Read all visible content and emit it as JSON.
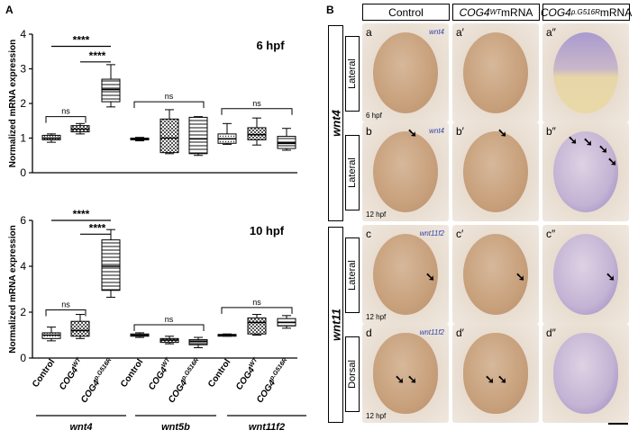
{
  "panel_labels": {
    "A": "A",
    "B": "B"
  },
  "chart_data": [
    {
      "type": "box",
      "title": "6 hpf",
      "ylabel": "Normalized mRNA expression",
      "ylim": [
        0,
        4
      ],
      "yticks": [
        0,
        1,
        2,
        3,
        4
      ],
      "categories": [
        "Control",
        "COG4WT",
        "COG4p.G516R",
        "Control",
        "COG4WT",
        "COG4p.G516R",
        "Control",
        "COG4WT",
        "COG4p.G516R"
      ],
      "patterns": [
        "dots",
        "checker",
        "hlines",
        "dots",
        "checker",
        "hlines",
        "dots",
        "checker",
        "hlines"
      ],
      "boxes": [
        {
          "min": 0.88,
          "q1": 0.95,
          "median": 1.0,
          "q3": 1.08,
          "max": 1.12
        },
        {
          "min": 1.12,
          "q1": 1.18,
          "median": 1.26,
          "q3": 1.36,
          "max": 1.42
        },
        {
          "min": 1.9,
          "q1": 2.05,
          "median": 2.4,
          "q3": 2.7,
          "max": 3.12
        },
        {
          "min": 0.92,
          "q1": 0.95,
          "median": 0.98,
          "q3": 1.0,
          "max": 1.02
        },
        {
          "min": 0.55,
          "q1": 0.58,
          "median": 1.0,
          "q3": 1.55,
          "max": 1.82
        },
        {
          "min": 0.5,
          "q1": 0.55,
          "median": 0.98,
          "q3": 1.6,
          "max": 1.62
        },
        {
          "min": 0.82,
          "q1": 0.85,
          "median": 0.98,
          "q3": 1.12,
          "max": 1.42
        },
        {
          "min": 0.8,
          "q1": 0.95,
          "median": 1.1,
          "q3": 1.3,
          "max": 1.58
        },
        {
          "min": 0.65,
          "q1": 0.7,
          "median": 0.85,
          "q3": 1.05,
          "max": 1.28
        }
      ],
      "significance": [
        {
          "from": 0,
          "to": 2,
          "label": "****"
        },
        {
          "from": 1,
          "to": 2,
          "label": "****"
        },
        {
          "from": 0,
          "to": 1,
          "label": "ns"
        },
        {
          "from": 3,
          "to": 5,
          "label": "ns"
        },
        {
          "from": 6,
          "to": 8,
          "label": "ns"
        }
      ]
    },
    {
      "type": "box",
      "title": "10 hpf",
      "ylabel": "Normalized mRNA expression",
      "ylim": [
        0,
        6
      ],
      "yticks": [
        0,
        2,
        4,
        6
      ],
      "categories": [
        "Control",
        "COG4WT",
        "COG4p.G516R",
        "Control",
        "COG4WT",
        "COG4p.G516R",
        "Control",
        "COG4WT",
        "COG4p.G516R"
      ],
      "patterns": [
        "dots",
        "checker",
        "hlines",
        "dots",
        "checker",
        "hlines",
        "dots",
        "checker",
        "hlines"
      ],
      "boxes": [
        {
          "min": 0.75,
          "q1": 0.85,
          "median": 1.0,
          "q3": 1.1,
          "max": 1.35
        },
        {
          "min": 0.85,
          "q1": 0.95,
          "median": 1.2,
          "q3": 1.6,
          "max": 1.9
        },
        {
          "min": 2.65,
          "q1": 2.95,
          "median": 4.0,
          "q3": 5.15,
          "max": 5.6
        },
        {
          "min": 0.9,
          "q1": 0.95,
          "median": 1.0,
          "q3": 1.05,
          "max": 1.1
        },
        {
          "min": 0.62,
          "q1": 0.68,
          "median": 0.78,
          "q3": 0.85,
          "max": 0.95
        },
        {
          "min": 0.45,
          "q1": 0.58,
          "median": 0.72,
          "q3": 0.8,
          "max": 0.9
        },
        {
          "min": 0.95,
          "q1": 0.97,
          "median": 1.0,
          "q3": 1.03,
          "max": 1.05
        },
        {
          "min": 1.0,
          "q1": 1.05,
          "median": 1.55,
          "q3": 1.75,
          "max": 1.9
        },
        {
          "min": 1.3,
          "q1": 1.4,
          "median": 1.55,
          "q3": 1.72,
          "max": 1.85
        }
      ],
      "significance": [
        {
          "from": 0,
          "to": 2,
          "label": "****"
        },
        {
          "from": 1,
          "to": 2,
          "label": "****"
        },
        {
          "from": 0,
          "to": 1,
          "label": "ns"
        },
        {
          "from": 3,
          "to": 5,
          "label": "ns"
        },
        {
          "from": 6,
          "to": 8,
          "label": "ns"
        }
      ]
    }
  ],
  "x_tick_labels": [
    {
      "main": "Control",
      "sup": ""
    },
    {
      "main": "COG4",
      "sup": "WT"
    },
    {
      "main": "COG4",
      "sup": "p.G516R"
    },
    {
      "main": "Control",
      "sup": ""
    },
    {
      "main": "COG4",
      "sup": "WT"
    },
    {
      "main": "COG4",
      "sup": "p.G516R"
    },
    {
      "main": "Control",
      "sup": ""
    },
    {
      "main": "COG4",
      "sup": "WT"
    },
    {
      "main": "COG4",
      "sup": "p.G516R"
    }
  ],
  "gene_groups": [
    "wnt4",
    "wnt5b",
    "wnt11f2"
  ],
  "micro": {
    "columns": [
      {
        "main": "Control",
        "sup": "",
        "suffix": ""
      },
      {
        "main": "COG4",
        "sup": "WT",
        "suffix": " mRNA"
      },
      {
        "main": "COG4",
        "sup": "p.G516R",
        "suffix": " mRNA"
      }
    ],
    "groups": [
      "wnt4",
      "wnt11"
    ],
    "views": [
      "Lateral",
      "Lateral",
      "Lateral",
      "Dorsal"
    ],
    "panel_letters": [
      [
        "a",
        "a′",
        "a″"
      ],
      [
        "b",
        "b′",
        "b″"
      ],
      [
        "c",
        "c′",
        "c″"
      ],
      [
        "d",
        "d′",
        "d″"
      ]
    ],
    "probes": [
      "wnt4",
      "wnt4",
      "wnt11f2",
      "wnt11f2"
    ],
    "stages": [
      "6 hpf",
      "12 hpf",
      "12 hpf",
      "12 hpf"
    ],
    "arrow_glyph": "➘"
  }
}
